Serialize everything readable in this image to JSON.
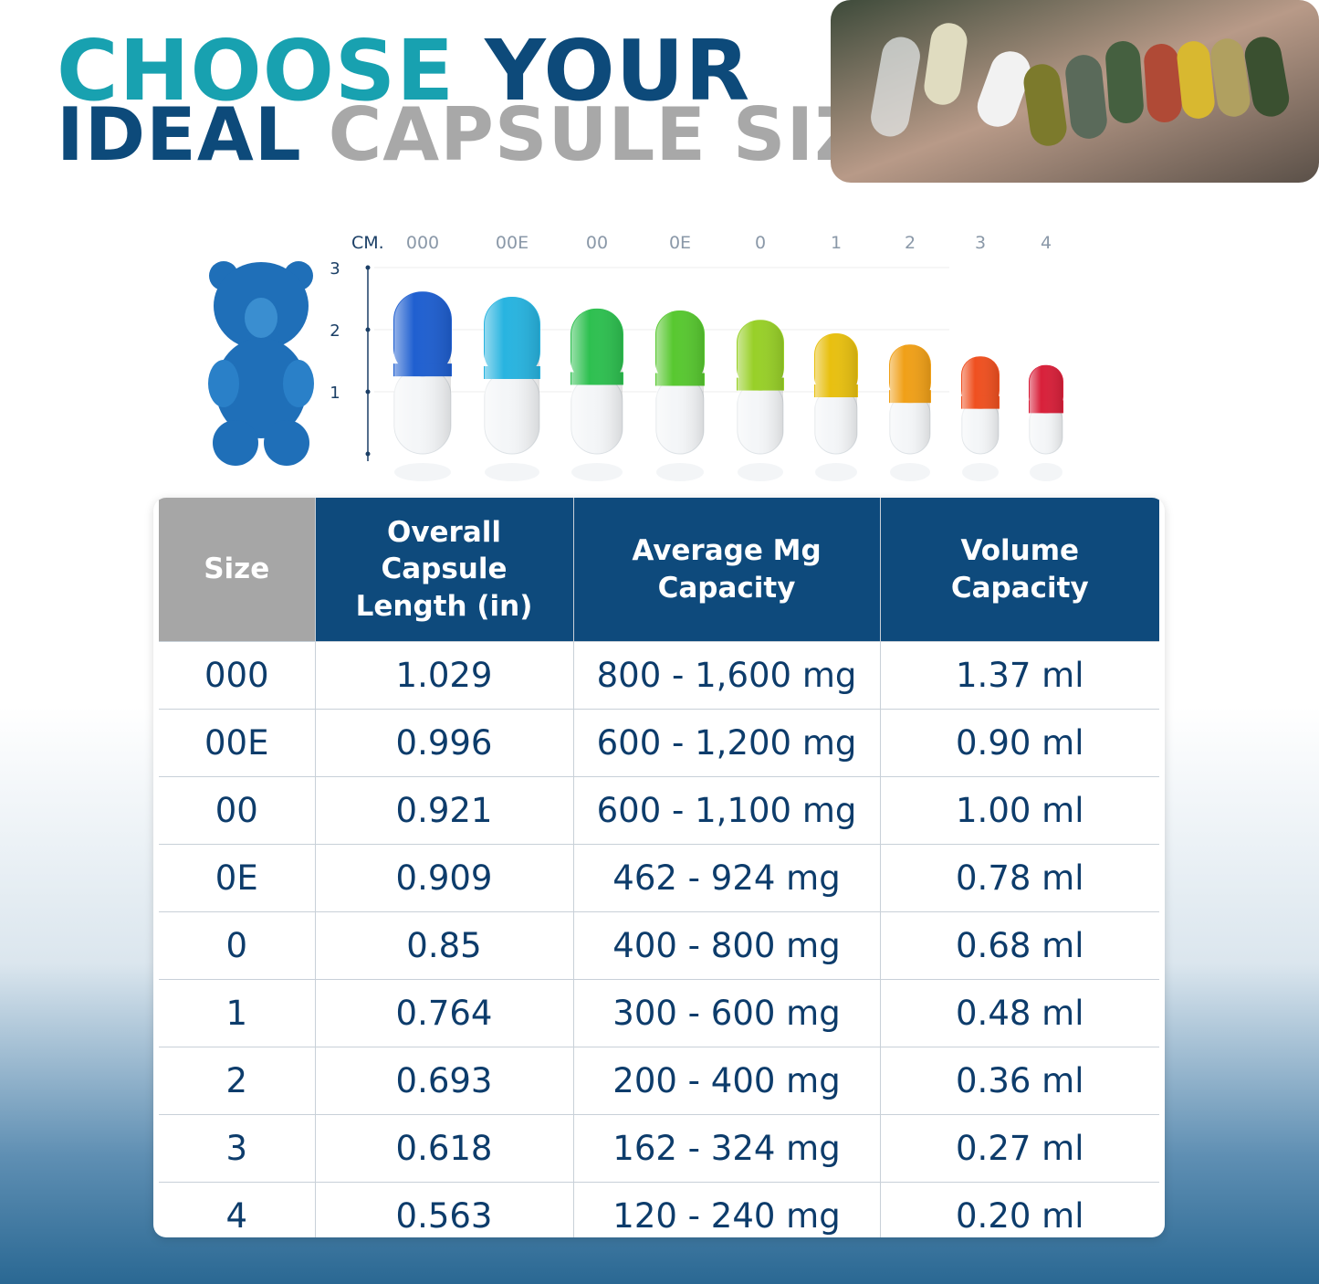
{
  "title": {
    "choose": "CHOOSE",
    "your": "YOUR",
    "ideal": "IDEAL",
    "capsule_size": "CAPSULE SIZE!"
  },
  "scale": {
    "unit": "CM.",
    "ticks": [
      "3",
      "2",
      "1"
    ],
    "sizes": [
      "000",
      "00E",
      "00",
      "0E",
      "0",
      "1",
      "2",
      "3",
      "4"
    ]
  },
  "table": {
    "header": [
      "Size",
      "Overall Capsule Length (in)",
      "Average Mg Capacity",
      "Volume Capacity"
    ],
    "rows": [
      [
        "000",
        "1.029",
        "800 - 1,600 mg",
        "1.37 ml"
      ],
      [
        "00E",
        "0.996",
        "600 - 1,200 mg",
        "0.90 ml"
      ],
      [
        "00",
        "0.921",
        "600 - 1,100 mg",
        "1.00 ml"
      ],
      [
        "0E",
        "0.909",
        "462 - 924 mg",
        "0.78 ml"
      ],
      [
        "0",
        "0.85",
        "400 - 800 mg",
        "0.68 ml"
      ],
      [
        "1",
        "0.764",
        "300 - 600 mg",
        "0.48 ml"
      ],
      [
        "2",
        "0.693",
        "200 - 400 mg",
        "0.36 ml"
      ],
      [
        "3",
        "0.618",
        "162 - 324 mg",
        "0.27 ml"
      ],
      [
        "4",
        "0.563",
        "120 - 240 mg",
        "0.20 ml"
      ]
    ]
  }
}
